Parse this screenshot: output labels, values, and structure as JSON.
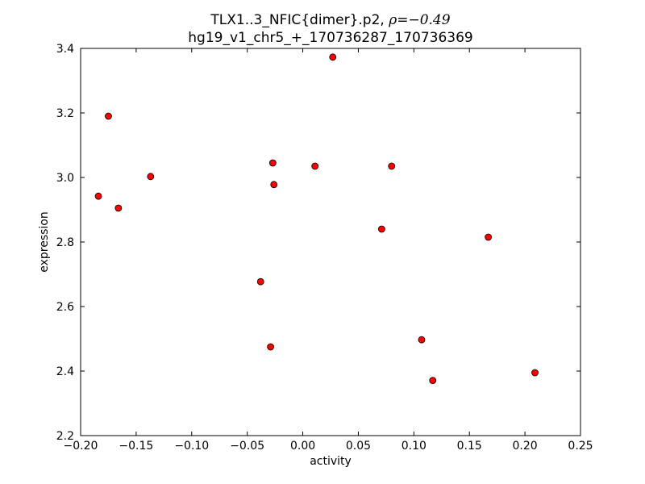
{
  "chart_data": {
    "type": "scatter",
    "title": "TLX1..3_NFIC{dimer}.p2, ρ=−0.49",
    "title_line1": {
      "prefix": "TLX1..3_NFIC{dimer}.p2, ",
      "rho": "ρ=−0.49"
    },
    "subtitle": "hg19_v1_chr5_+_170736287_170736369",
    "xlabel": "activity",
    "ylabel": "expression",
    "xlim": [
      -0.2,
      0.25
    ],
    "ylim": [
      2.2,
      3.4
    ],
    "xticks": [
      -0.2,
      -0.15,
      -0.1,
      -0.05,
      0.0,
      0.05,
      0.1,
      0.15,
      0.2,
      0.25
    ],
    "xtick_labels": [
      "−0.20",
      "−0.15",
      "−0.10",
      "−0.05",
      "0.00",
      "0.05",
      "0.10",
      "0.15",
      "0.20",
      "0.25"
    ],
    "yticks": [
      2.2,
      2.4,
      2.6,
      2.8,
      3.0,
      3.2,
      3.4
    ],
    "ytick_labels": [
      "2.2",
      "2.4",
      "2.6",
      "2.8",
      "3.0",
      "3.2",
      "3.4"
    ],
    "grid": false,
    "legend": "none",
    "marker_color": "#ff0000",
    "marker_edge_color": "#000000",
    "points": [
      {
        "x": -0.184,
        "y": 2.942
      },
      {
        "x": -0.175,
        "y": 3.19
      },
      {
        "x": -0.166,
        "y": 2.905
      },
      {
        "x": -0.137,
        "y": 3.003
      },
      {
        "x": -0.038,
        "y": 2.677
      },
      {
        "x": -0.029,
        "y": 2.475
      },
      {
        "x": -0.027,
        "y": 3.045
      },
      {
        "x": -0.026,
        "y": 2.978
      },
      {
        "x": 0.011,
        "y": 3.035
      },
      {
        "x": 0.027,
        "y": 3.373
      },
      {
        "x": 0.071,
        "y": 2.84
      },
      {
        "x": 0.08,
        "y": 3.035
      },
      {
        "x": 0.107,
        "y": 2.497
      },
      {
        "x": 0.117,
        "y": 2.371
      },
      {
        "x": 0.167,
        "y": 2.815
      },
      {
        "x": 0.209,
        "y": 2.395
      }
    ]
  }
}
